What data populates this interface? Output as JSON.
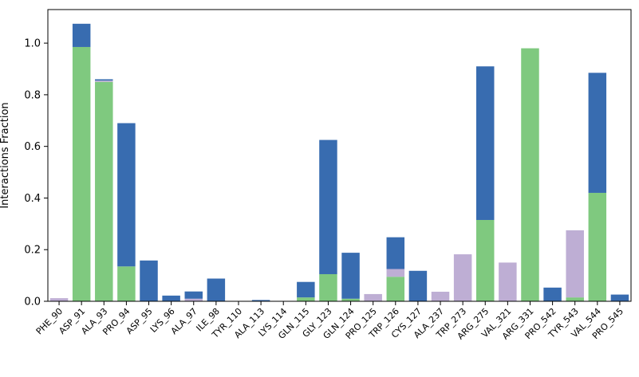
{
  "chart_data": {
    "type": "bar",
    "stacked": true,
    "title": "",
    "xlabel": "",
    "ylabel": "Interactions Fraction",
    "ylim": [
      0,
      1.13
    ],
    "yticks": [
      0.0,
      0.2,
      0.4,
      0.6,
      0.8,
      1.0
    ],
    "ytick_labels": [
      "0.0",
      "0.2",
      "0.4",
      "0.6",
      "0.8",
      "1.0"
    ],
    "grid": false,
    "legend": "none",
    "categories": [
      "PHE_90",
      "ASP_91",
      "ALA_93",
      "PRO_94",
      "ASP_95",
      "LYS_96",
      "ALA_97",
      "ILE_98",
      "TYR_110",
      "ALA_113",
      "LYS_114",
      "GLN_115",
      "GLY_123",
      "GLN_124",
      "PRO_125",
      "TRP_126",
      "CYS_127",
      "ALA_237",
      "TRP_273",
      "ARG_275",
      "VAL_321",
      "ARG_331",
      "PRO_542",
      "TYR_543",
      "VAL_544",
      "PRO_545"
    ],
    "series": [
      {
        "color": "#7fc97f",
        "values": [
          0,
          0.985,
          0.85,
          0.135,
          0,
          0,
          0,
          0,
          0,
          0,
          0,
          0.015,
          0.105,
          0.01,
          0,
          0.095,
          0,
          0,
          0,
          0.315,
          0,
          0.98,
          0,
          0.015,
          0.42,
          0
        ]
      },
      {
        "color": "#beaed4",
        "values": [
          0.012,
          0,
          0.005,
          0,
          0,
          0,
          0.01,
          0,
          0,
          0,
          0,
          0,
          0,
          0,
          0.028,
          0.03,
          0,
          0.037,
          0.182,
          0,
          0.15,
          0,
          0,
          0.26,
          0,
          0
        ]
      },
      {
        "color": "#386cb0",
        "values": [
          0,
          0.09,
          0.005,
          0.555,
          0.158,
          0.022,
          0.028,
          0.088,
          0,
          0.005,
          0,
          0.06,
          0.52,
          0.178,
          0,
          0.123,
          0.118,
          0,
          0,
          0.595,
          0,
          0,
          0.053,
          0,
          0.465,
          0.026
        ]
      }
    ]
  }
}
